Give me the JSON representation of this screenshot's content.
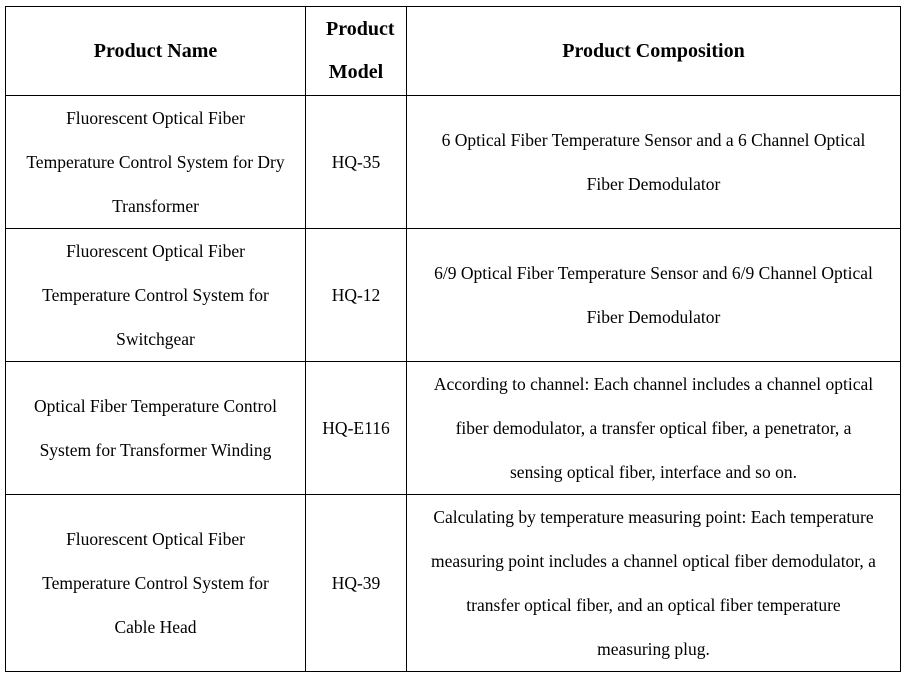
{
  "headers": [
    "Product Name",
    "Product Model",
    "Product Composition"
  ],
  "rows": [
    {
      "name": "Fluorescent Optical Fiber Temperature Control System for Dry Transformer",
      "model": "HQ-35",
      "composition": "6 Optical Fiber Temperature Sensor and a 6 Channel Optical Fiber Demodulator"
    },
    {
      "name": "Fluorescent Optical Fiber Temperature Control System for Switchgear",
      "model": "HQ-12",
      "composition": "6/9 Optical Fiber Temperature Sensor and 6/9 Channel Optical Fiber Demodulator"
    },
    {
      "name": "Optical Fiber Temperature Control System for Transformer Winding",
      "model": "HQ-E116",
      "composition": "According to channel: Each channel includes a channel optical fiber demodulator, a transfer optical fiber, a penetrator, a sensing optical fiber, interface and so on."
    },
    {
      "name": "Fluorescent Optical Fiber Temperature Control System for Cable Head",
      "model": "HQ-39",
      "composition": "Calculating by temperature measuring point: Each temperature measuring point includes a channel optical fiber demodulator, a transfer optical fiber, and an optical fiber temperature measuring plug."
    }
  ]
}
